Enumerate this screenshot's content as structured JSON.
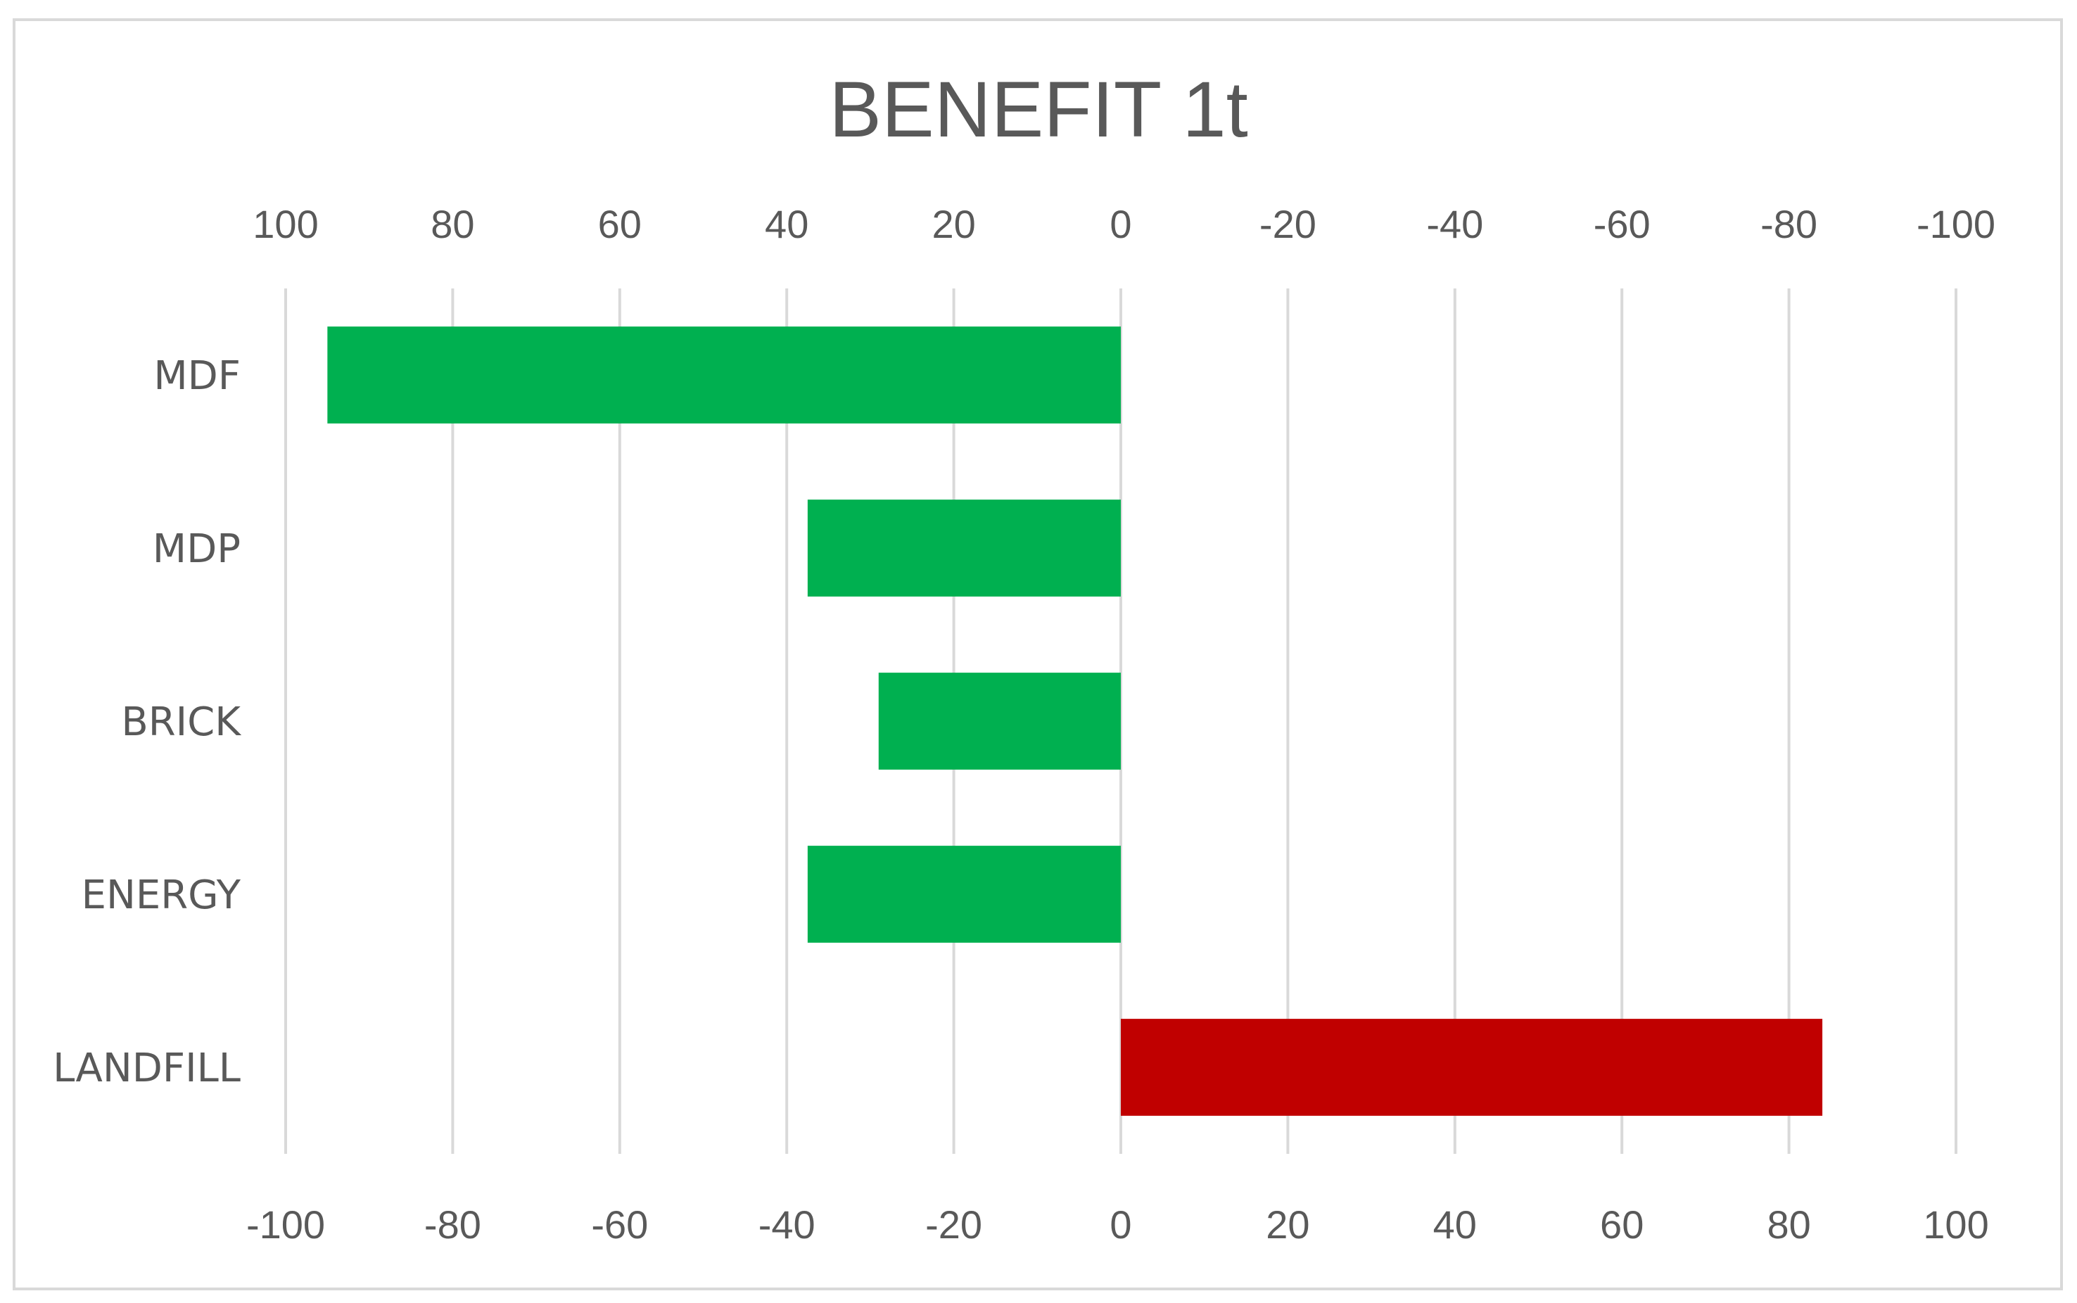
{
  "chart_data": {
    "type": "bar",
    "orientation": "horizontal",
    "title": "BENEFIT 1t",
    "categories": [
      "MDF",
      "MDP",
      "BRICK",
      "ENERGY",
      "LANDFILL"
    ],
    "values": [
      -95,
      -37.5,
      -29,
      -37.5,
      84
    ],
    "colors": [
      "#00B050",
      "#00B050",
      "#00B050",
      "#00B050",
      "#C00000"
    ],
    "xlim": [
      -100,
      100
    ],
    "bottom_ticks": [
      "-100",
      "-80",
      "-60",
      "-40",
      "-20",
      "0",
      "20",
      "40",
      "60",
      "80",
      "100"
    ],
    "top_ticks": [
      "100",
      "80",
      "60",
      "40",
      "20",
      "0",
      "-20",
      "-40",
      "-60",
      "-80",
      "-100"
    ],
    "grid": true,
    "legend": "none",
    "xlabel": "",
    "ylabel": ""
  },
  "colors": {
    "border": "#d9d9d9",
    "grid": "#d9d9d9",
    "text": "#595959",
    "positive_benefit": "#00B050",
    "negative_benefit": "#C00000"
  }
}
